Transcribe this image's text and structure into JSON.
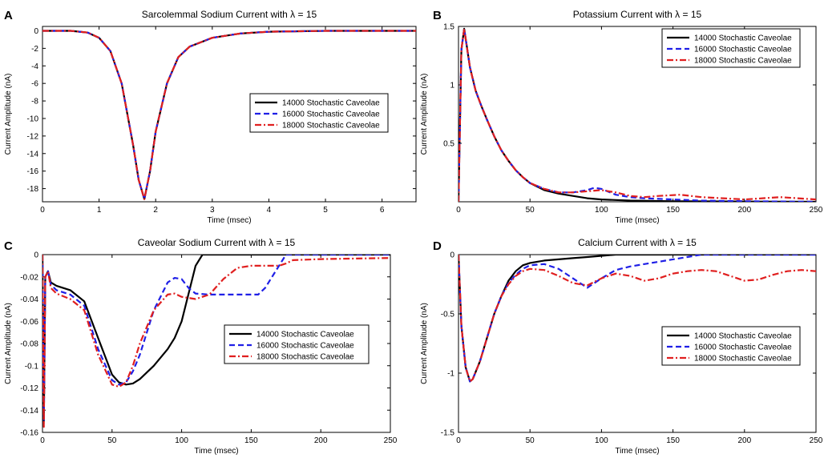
{
  "legend_entries": [
    "14000 Stochastic Caveolae",
    "16000 Stochastic Caveolae",
    "18000 Stochastic Caveolae"
  ],
  "series_colors": [
    "#000000",
    "#1f1fe6",
    "#e01f1f"
  ],
  "chart_data": [
    {
      "panel": "A",
      "type": "line",
      "title": "Sarcolemmal Sodium Current with λ = 15",
      "xlabel": "Time (msec)",
      "ylabel": "Current Amplitude (nA)",
      "xlim": [
        0,
        6.6
      ],
      "ylim": [
        -19.5,
        0.5
      ],
      "xticks": [
        0,
        1,
        2,
        3,
        4,
        5,
        6
      ],
      "xtick_labels": [
        "0",
        "1",
        "2",
        "3",
        "4",
        "5",
        "6"
      ],
      "yticks": [
        0,
        -2,
        -4,
        -6,
        -8,
        -10,
        -12,
        -14,
        -16,
        -18
      ],
      "ytick_labels": [
        "0",
        "-2",
        "-4",
        "-6",
        "-8",
        "-10",
        "-12",
        "-14",
        "-16",
        "-18"
      ],
      "legend_position": "center-right",
      "series": [
        {
          "name": "14000 Stochastic Caveolae",
          "style": "solid",
          "x": [
            0,
            0.5,
            0.8,
            1.0,
            1.2,
            1.4,
            1.6,
            1.7,
            1.8,
            1.9,
            2.0,
            2.2,
            2.4,
            2.6,
            3.0,
            3.5,
            4.0,
            5.0,
            6.6
          ],
          "y": [
            0,
            0,
            -0.2,
            -0.8,
            -2.3,
            -6.0,
            -13.0,
            -17.0,
            -19.2,
            -16.0,
            -11.5,
            -6.0,
            -3.0,
            -1.8,
            -0.8,
            -0.3,
            -0.1,
            0,
            0
          ]
        },
        {
          "name": "16000 Stochastic Caveolae",
          "style": "dashed",
          "x": [
            0,
            0.5,
            0.8,
            1.0,
            1.2,
            1.4,
            1.6,
            1.7,
            1.8,
            1.9,
            2.0,
            2.2,
            2.4,
            2.6,
            3.0,
            3.5,
            4.0,
            5.0,
            6.6
          ],
          "y": [
            0,
            0,
            -0.2,
            -0.8,
            -2.3,
            -6.0,
            -13.0,
            -17.0,
            -19.2,
            -16.0,
            -11.5,
            -6.0,
            -3.0,
            -1.8,
            -0.8,
            -0.3,
            -0.1,
            0,
            0
          ]
        },
        {
          "name": "18000 Stochastic Caveolae",
          "style": "dashdot",
          "x": [
            0,
            0.5,
            0.8,
            1.0,
            1.2,
            1.4,
            1.6,
            1.7,
            1.8,
            1.9,
            2.0,
            2.2,
            2.4,
            2.6,
            3.0,
            3.5,
            4.0,
            5.0,
            6.6
          ],
          "y": [
            0,
            0,
            -0.2,
            -0.8,
            -2.3,
            -6.0,
            -13.0,
            -17.0,
            -19.2,
            -16.0,
            -11.5,
            -6.0,
            -3.0,
            -1.8,
            -0.8,
            -0.3,
            -0.1,
            0,
            0
          ]
        }
      ]
    },
    {
      "panel": "B",
      "type": "line",
      "title": "Potassium Current with λ = 15",
      "xlabel": "Time (msec)",
      "ylabel": "Current Amplitude (nA)",
      "xlim": [
        0,
        250
      ],
      "ylim": [
        0,
        1.5
      ],
      "xticks": [
        0,
        50,
        100,
        150,
        200,
        250
      ],
      "xtick_labels": [
        "0",
        "50",
        "100",
        "150",
        "200",
        "250"
      ],
      "yticks": [
        0.5,
        1,
        1.5
      ],
      "ytick_labels": [
        "0.5",
        "1",
        "1.5"
      ],
      "legend_position": "top-right",
      "series": [
        {
          "name": "14000 Stochastic Caveolae",
          "style": "solid",
          "x": [
            0,
            2,
            4,
            8,
            12,
            16,
            20,
            25,
            30,
            35,
            40,
            45,
            50,
            60,
            70,
            80,
            90,
            100,
            120,
            150,
            200,
            250
          ],
          "y": [
            0,
            1.3,
            1.48,
            1.15,
            0.95,
            0.82,
            0.7,
            0.56,
            0.44,
            0.35,
            0.27,
            0.21,
            0.16,
            0.1,
            0.07,
            0.05,
            0.03,
            0.02,
            0.01,
            0.005,
            0.002,
            0
          ]
        },
        {
          "name": "16000 Stochastic Caveolae",
          "style": "dashed",
          "x": [
            0,
            2,
            4,
            8,
            12,
            16,
            20,
            25,
            30,
            35,
            40,
            45,
            50,
            60,
            70,
            80,
            90,
            95,
            100,
            110,
            120,
            130,
            150,
            170,
            200,
            250
          ],
          "y": [
            0,
            1.3,
            1.48,
            1.15,
            0.95,
            0.82,
            0.7,
            0.56,
            0.44,
            0.35,
            0.27,
            0.21,
            0.16,
            0.11,
            0.08,
            0.08,
            0.1,
            0.12,
            0.11,
            0.06,
            0.04,
            0.03,
            0.02,
            0.01,
            0.005,
            0
          ]
        },
        {
          "name": "18000 Stochastic Caveolae",
          "style": "dashdot",
          "x": [
            0,
            2,
            4,
            8,
            12,
            16,
            20,
            25,
            30,
            35,
            40,
            45,
            50,
            60,
            70,
            80,
            90,
            100,
            110,
            120,
            130,
            140,
            155,
            170,
            185,
            200,
            225,
            250
          ],
          "y": [
            0,
            1.3,
            1.48,
            1.15,
            0.95,
            0.82,
            0.7,
            0.56,
            0.44,
            0.35,
            0.27,
            0.21,
            0.16,
            0.11,
            0.08,
            0.08,
            0.09,
            0.1,
            0.08,
            0.05,
            0.04,
            0.05,
            0.06,
            0.04,
            0.03,
            0.02,
            0.04,
            0.02
          ]
        }
      ]
    },
    {
      "panel": "C",
      "type": "line",
      "title": "Caveolar Sodium Current with λ = 15",
      "xlabel": "Time (msec)",
      "ylabel": "Current Amplitude (nA)",
      "xlim": [
        0,
        250
      ],
      "ylim": [
        -0.16,
        0
      ],
      "xticks": [
        0,
        50,
        100,
        150,
        200,
        250
      ],
      "xtick_labels": [
        "0",
        "50",
        "100",
        "150",
        "200",
        "250"
      ],
      "yticks": [
        0,
        -0.02,
        -0.04,
        -0.06,
        -0.08,
        -0.1,
        -0.12,
        -0.14,
        -0.16
      ],
      "ytick_labels": [
        "0",
        "-0.02",
        "-0.04",
        "-0.06",
        "-0.08",
        "-0.1",
        "-0.12",
        "-0.14",
        "-0.16"
      ],
      "legend_position": "center-right",
      "series": [
        {
          "name": "14000 Stochastic Caveolae",
          "style": "solid",
          "x": [
            0,
            1,
            2,
            4,
            6,
            10,
            20,
            30,
            40,
            50,
            55,
            60,
            65,
            70,
            80,
            90,
            95,
            100,
            105,
            110,
            115,
            120,
            150,
            200,
            250
          ],
          "y": [
            0,
            -0.15,
            -0.02,
            -0.015,
            -0.025,
            -0.028,
            -0.032,
            -0.042,
            -0.075,
            -0.108,
            -0.115,
            -0.117,
            -0.116,
            -0.112,
            -0.1,
            -0.085,
            -0.075,
            -0.06,
            -0.035,
            -0.01,
            0,
            0,
            0,
            0,
            0
          ]
        },
        {
          "name": "16000 Stochastic Caveolae",
          "style": "dashed",
          "x": [
            0,
            1,
            2,
            4,
            6,
            10,
            20,
            30,
            40,
            50,
            55,
            60,
            65,
            70,
            80,
            90,
            95,
            100,
            105,
            110,
            120,
            130,
            140,
            150,
            155,
            160,
            165,
            170,
            175,
            200,
            250
          ],
          "y": [
            0,
            -0.15,
            -0.02,
            -0.015,
            -0.027,
            -0.032,
            -0.036,
            -0.046,
            -0.085,
            -0.113,
            -0.117,
            -0.115,
            -0.105,
            -0.09,
            -0.05,
            -0.025,
            -0.021,
            -0.022,
            -0.03,
            -0.035,
            -0.036,
            -0.036,
            -0.036,
            -0.036,
            -0.036,
            -0.03,
            -0.02,
            -0.01,
            0,
            0,
            0
          ]
        },
        {
          "name": "18000 Stochastic Caveolae",
          "style": "dashdot",
          "x": [
            0,
            1,
            2,
            4,
            6,
            10,
            20,
            30,
            40,
            50,
            55,
            60,
            65,
            70,
            80,
            90,
            95,
            100,
            110,
            120,
            130,
            140,
            150,
            160,
            170,
            175,
            180,
            200,
            250
          ],
          "y": [
            0,
            -0.155,
            -0.02,
            -0.015,
            -0.03,
            -0.035,
            -0.04,
            -0.05,
            -0.09,
            -0.117,
            -0.119,
            -0.115,
            -0.1,
            -0.08,
            -0.05,
            -0.036,
            -0.035,
            -0.038,
            -0.04,
            -0.036,
            -0.022,
            -0.012,
            -0.01,
            -0.01,
            -0.01,
            -0.008,
            -0.005,
            -0.004,
            -0.003
          ]
        }
      ]
    },
    {
      "panel": "D",
      "type": "line",
      "title": "Calcium Current with λ = 15",
      "xlabel": "Time (msec)",
      "ylabel": "Current Amplitude (nA)",
      "xlim": [
        0,
        250
      ],
      "ylim": [
        -1.5,
        0
      ],
      "xticks": [
        0,
        50,
        100,
        150,
        200,
        250
      ],
      "xtick_labels": [
        "0",
        "50",
        "100",
        "150",
        "200",
        "250"
      ],
      "yticks": [
        0,
        -0.5,
        -1,
        -1.5
      ],
      "ytick_labels": [
        "0",
        "-0.5",
        "-1",
        "-1.5"
      ],
      "legend_position": "center-right",
      "series": [
        {
          "name": "14000 Stochastic Caveolae",
          "style": "solid",
          "x": [
            0,
            2,
            5,
            8,
            10,
            15,
            20,
            25,
            30,
            35,
            40,
            45,
            50,
            60,
            70,
            80,
            90,
            100,
            110,
            150,
            200,
            250
          ],
          "y": [
            0,
            -0.6,
            -0.95,
            -1.07,
            -1.05,
            -0.9,
            -0.7,
            -0.5,
            -0.35,
            -0.22,
            -0.14,
            -0.09,
            -0.07,
            -0.05,
            -0.04,
            -0.03,
            -0.02,
            -0.01,
            0,
            0,
            0,
            0
          ]
        },
        {
          "name": "16000 Stochastic Caveolae",
          "style": "dashed",
          "x": [
            0,
            2,
            5,
            8,
            10,
            15,
            20,
            25,
            30,
            35,
            40,
            45,
            50,
            60,
            70,
            80,
            90,
            100,
            110,
            120,
            130,
            140,
            150,
            160,
            170,
            200,
            250
          ],
          "y": [
            0,
            -0.6,
            -0.95,
            -1.07,
            -1.05,
            -0.9,
            -0.7,
            -0.5,
            -0.35,
            -0.24,
            -0.17,
            -0.12,
            -0.09,
            -0.08,
            -0.12,
            -0.2,
            -0.28,
            -0.2,
            -0.13,
            -0.1,
            -0.08,
            -0.06,
            -0.04,
            -0.02,
            0,
            0,
            0
          ]
        },
        {
          "name": "18000 Stochastic Caveolae",
          "style": "dashdot",
          "x": [
            0,
            2,
            5,
            8,
            10,
            15,
            20,
            25,
            30,
            35,
            40,
            45,
            50,
            60,
            70,
            80,
            90,
            100,
            110,
            120,
            130,
            140,
            150,
            160,
            170,
            180,
            190,
            200,
            210,
            220,
            230,
            240,
            250
          ],
          "y": [
            0,
            -0.6,
            -0.95,
            -1.07,
            -1.05,
            -0.9,
            -0.7,
            -0.5,
            -0.35,
            -0.25,
            -0.18,
            -0.14,
            -0.12,
            -0.13,
            -0.18,
            -0.24,
            -0.26,
            -0.2,
            -0.16,
            -0.18,
            -0.22,
            -0.2,
            -0.16,
            -0.14,
            -0.13,
            -0.14,
            -0.18,
            -0.22,
            -0.21,
            -0.17,
            -0.14,
            -0.13,
            -0.14
          ]
        }
      ]
    }
  ]
}
